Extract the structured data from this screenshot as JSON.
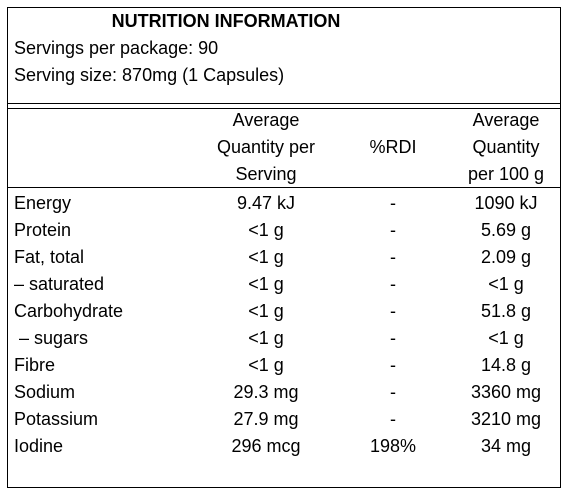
{
  "header": {
    "title": "NUTRITION INFORMATION",
    "servings": "Servings per package: 90",
    "serving_size": "Serving size: 870mg (1 Capsules)"
  },
  "table": {
    "columns": [
      [
        "Average",
        "Quantity per",
        "Serving"
      ],
      [
        "%RDI"
      ],
      [
        "Average",
        "Quantity",
        "per 100 g"
      ]
    ],
    "rows": [
      [
        "Energy",
        "9.47 kJ",
        "-",
        "1090 kJ"
      ],
      [
        "Protein",
        "<1 g",
        "-",
        "5.69 g"
      ],
      [
        "Fat, total",
        "<1 g",
        "-",
        "2.09 g"
      ],
      [
        "– saturated",
        "<1 g",
        "-",
        "<1 g"
      ],
      [
        "Carbohydrate",
        "<1 g",
        "-",
        "51.8 g"
      ],
      [
        " – sugars",
        "<1 g",
        "-",
        "<1 g"
      ],
      [
        "Fibre",
        "<1 g",
        "-",
        "14.8 g"
      ],
      [
        "Sodium",
        "29.3 mg",
        "-",
        "3360 mg"
      ],
      [
        "Potassium",
        "27.9 mg",
        "-",
        "3210 mg"
      ],
      [
        "Iodine",
        "296 mcg",
        "198%",
        "34 mg"
      ]
    ]
  }
}
